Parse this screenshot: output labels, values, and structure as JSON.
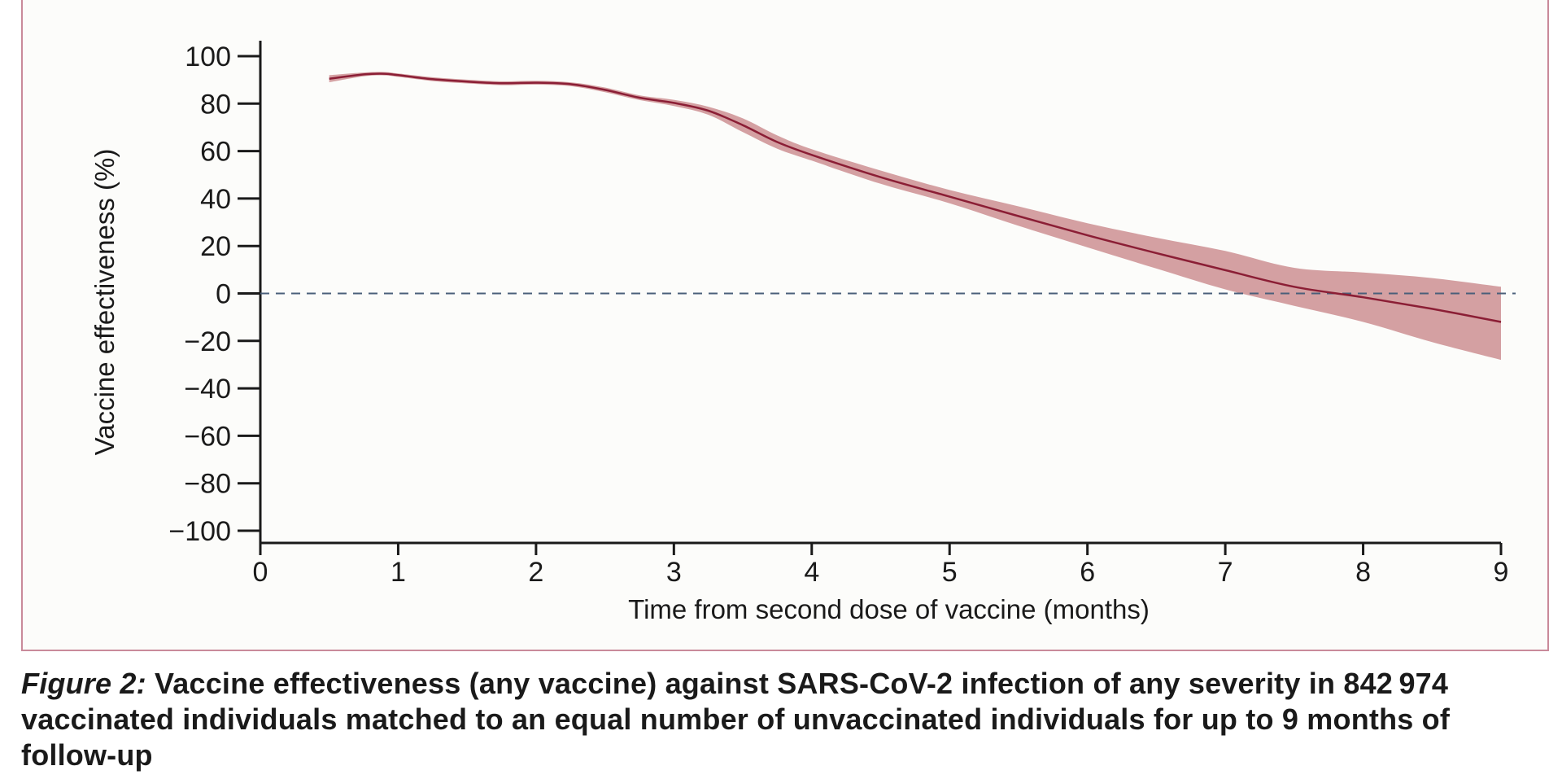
{
  "chart_data": {
    "type": "line",
    "xlabel": "Time from second dose of vaccine (months)",
    "ylabel": "Vaccine effectiveness (%)",
    "xlim": [
      0,
      9
    ],
    "ylim": [
      -100,
      100
    ],
    "x_ticks": [
      "0",
      "1",
      "2",
      "3",
      "4",
      "5",
      "6",
      "7",
      "8",
      "9"
    ],
    "y_ticks": [
      "100",
      "80",
      "60",
      "40",
      "20",
      "0",
      "−20",
      "−40",
      "−60",
      "−80",
      "−100"
    ],
    "reference_line": {
      "y": 0,
      "style": "dashed"
    },
    "line_color": "#8b1e35",
    "band_color": "#cc8f92",
    "series": [
      {
        "x": [
          0.5,
          0.75,
          0.9,
          1.0,
          1.25,
          1.5,
          1.75,
          2.0,
          2.25,
          2.5,
          2.75,
          3.0,
          3.25,
          3.5,
          3.75,
          4.0,
          4.5,
          5.0,
          5.5,
          6.0,
          6.5,
          7.0,
          7.5,
          8.0,
          8.5,
          9.0
        ],
        "y": [
          90.5,
          92.3,
          92.6,
          92.0,
          90.3,
          89.3,
          88.6,
          88.8,
          88.2,
          85.8,
          82.5,
          80.3,
          77.0,
          70.9,
          63.8,
          58.4,
          49.0,
          40.8,
          32.6,
          24.5,
          17.0,
          9.8,
          2.8,
          -1.6,
          -6.5,
          -12.0
        ],
        "lower": [
          89.0,
          91.5,
          91.9,
          91.3,
          89.5,
          88.5,
          87.8,
          88.0,
          87.4,
          84.8,
          81.5,
          79.0,
          75.3,
          68.0,
          61.0,
          56.0,
          46.2,
          38.0,
          28.5,
          19.4,
          10.5,
          1.7,
          -5.2,
          -12.0,
          -20.5,
          -28.0
        ],
        "upper": [
          92.0,
          93.1,
          93.3,
          92.7,
          91.1,
          90.1,
          89.4,
          89.6,
          89.0,
          86.8,
          83.5,
          81.6,
          78.7,
          73.8,
          66.6,
          60.8,
          51.8,
          43.6,
          36.7,
          29.6,
          23.5,
          17.9,
          10.8,
          8.8,
          6.5,
          2.8
        ]
      }
    ]
  },
  "caption": {
    "label": "Figure 2:",
    "text": "Vaccine effectiveness (any vaccine) against SARS-CoV-2 infection of any severity in 842 974 vaccinated individuals matched to an equal number of unvaccinated individuals for up to 9 months of follow-up"
  }
}
